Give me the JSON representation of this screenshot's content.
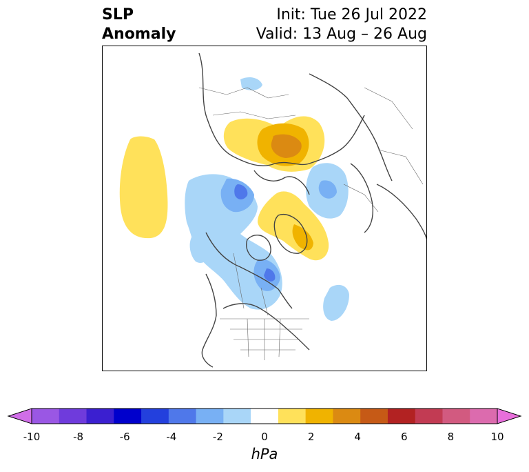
{
  "title": {
    "left_line1": "SLP",
    "left_line2": "Anomaly",
    "right_line1": "Init: Tue 26 Jul 2022",
    "right_line2": "Valid: 13 Aug – 26 Aug"
  },
  "colorbar": {
    "label": "hPa",
    "min": -10,
    "max": 10,
    "extend": "both",
    "levels": [
      -10,
      -9,
      -8,
      -7,
      -6,
      -5,
      -4,
      -3,
      -2,
      -1,
      1,
      2,
      3,
      4,
      5,
      6,
      7,
      8,
      9,
      10
    ],
    "colors": [
      "#d06ee8",
      "#9a57e4",
      "#6f3bdc",
      "#3b1fd0",
      "#0000cc",
      "#2340dd",
      "#4f78ea",
      "#78b0f4",
      "#a9d6f8",
      "#ffffff",
      "#ffe15a",
      "#f0b300",
      "#db8a12",
      "#c65a16",
      "#b22222",
      "#c23b53",
      "#d25a80",
      "#dc6bae",
      "#e86fdb"
    ],
    "ticks": [
      "-10",
      "-8",
      "-6",
      "-4",
      "-2",
      "0",
      "2",
      "4",
      "6",
      "8",
      "10"
    ]
  },
  "map": {
    "projection": "north polar stereographic",
    "region": "Northern Hemisphere / North America"
  }
}
